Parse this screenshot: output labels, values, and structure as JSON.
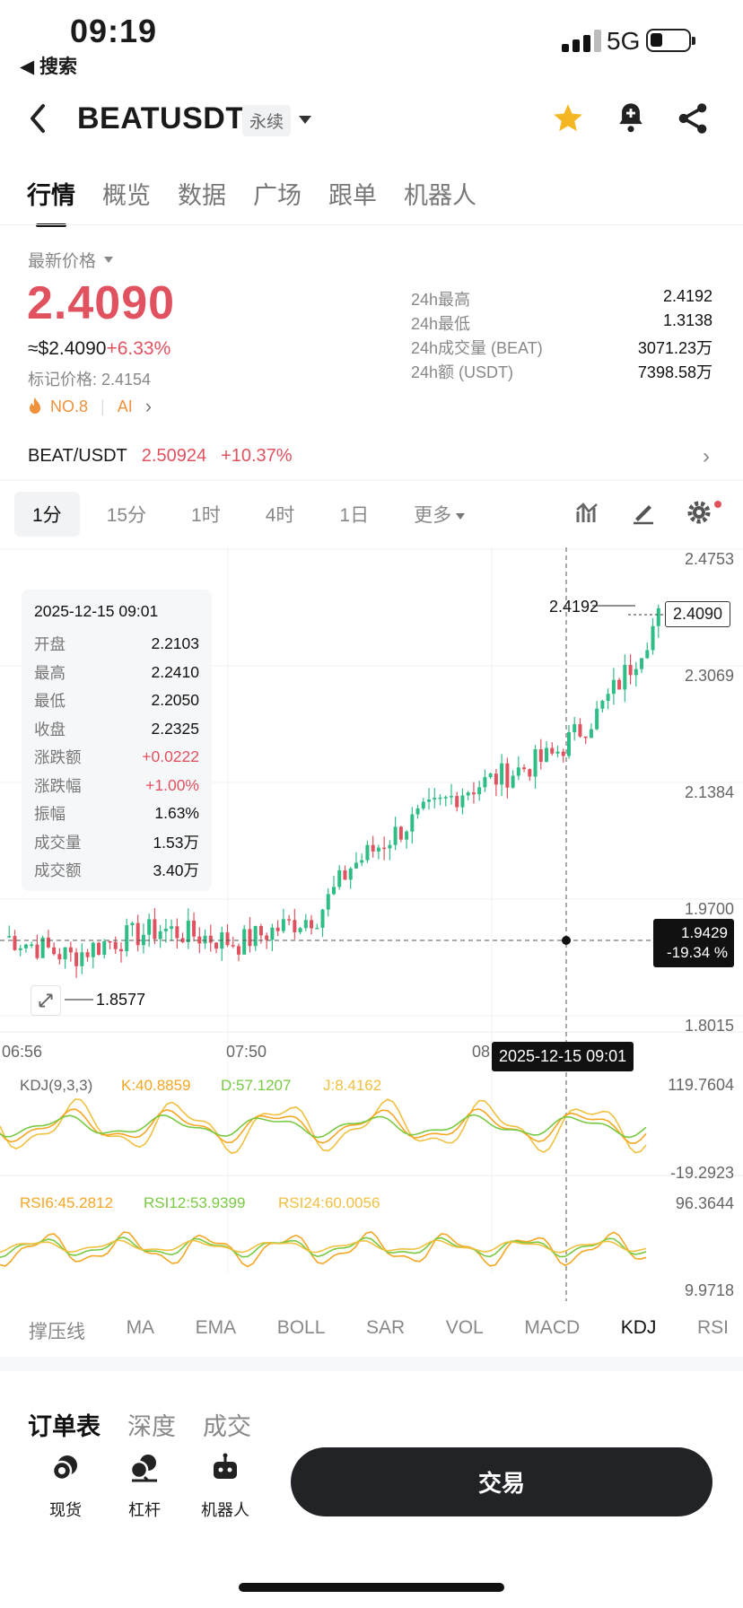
{
  "status_bar": {
    "time": "09:19",
    "back_app": "◀ 搜索",
    "network": "5G"
  },
  "header": {
    "pair": "BEATUSDT",
    "contract_type": "永续"
  },
  "tabs": [
    "行情",
    "概览",
    "数据",
    "广场",
    "跟单",
    "机器人"
  ],
  "price_panel": {
    "latest_label": "最新价格",
    "price": "2.4090",
    "usd_price": "≈$2.4090",
    "change_pct": "+6.33%",
    "mark_price": "标记价格: 2.4154",
    "rank": "NO.8",
    "ai": "AI"
  },
  "stats": [
    {
      "k": "24h最高",
      "v": "2.4192"
    },
    {
      "k": "24h最低",
      "v": "1.3138"
    },
    {
      "k": "24h成交量 (BEAT)",
      "v": "3071.23万"
    },
    {
      "k": "24h额 (USDT)",
      "v": "7398.58万"
    }
  ],
  "spot": {
    "pair": "BEAT/USDT",
    "price": "2.50924",
    "change": "+10.37%"
  },
  "intervals": [
    "1分",
    "15分",
    "1时",
    "4时",
    "1日"
  ],
  "more_label": "更多",
  "ohlc": {
    "date": "2025-12-15 09:01",
    "rows": [
      {
        "k": "开盘",
        "v": "2.2103",
        "red": false
      },
      {
        "k": "最高",
        "v": "2.2410",
        "red": false
      },
      {
        "k": "最低",
        "v": "2.2050",
        "red": false
      },
      {
        "k": "收盘",
        "v": "2.2325",
        "red": false
      },
      {
        "k": "涨跌额",
        "v": "+0.0222",
        "red": true
      },
      {
        "k": "涨跌幅",
        "v": "+1.00%",
        "red": true
      },
      {
        "k": "振幅",
        "v": "1.63%",
        "red": false
      },
      {
        "k": "成交量",
        "v": "1.53万",
        "red": false
      },
      {
        "k": "成交额",
        "v": "3.40万",
        "red": false
      }
    ]
  },
  "chart_data": {
    "type": "candlestick",
    "y_axis_labels": [
      "2.4753",
      "2.3069",
      "2.1384",
      "1.9700",
      "1.8015"
    ],
    "ylim": [
      1.8015,
      2.4753
    ],
    "x_axis_labels": [
      "06:56",
      "07:50",
      "08"
    ],
    "high_label": "2.4192",
    "low_label": "1.8577",
    "last_price": "2.4090",
    "crosshair": {
      "price": "1.9429",
      "change": "-19.34 %",
      "time": "2025-12-15 09:01"
    },
    "kdj": {
      "label": "KDJ(9,3,3)",
      "k": "K:40.8859",
      "d": "D:57.1207",
      "j": "J:8.4162",
      "top": "119.7604",
      "bottom": "-19.2923"
    },
    "rsi": {
      "r6": "RSI6:45.2812",
      "r12": "RSI12:53.9399",
      "r24": "RSI24:60.0056",
      "top": "96.3644",
      "bottom": "9.9718"
    }
  },
  "indicators": [
    "撑压线",
    "MA",
    "EMA",
    "BOLL",
    "SAR",
    "VOL",
    "MACD",
    "KDJ",
    "RSI"
  ],
  "book_tabs": [
    "订单表",
    "深度",
    "成交"
  ],
  "bottom_nav": [
    "现货",
    "杠杆",
    "机器人"
  ],
  "trade_button": "交易",
  "colors": {
    "up": "#2ebd85",
    "down": "#e0525f",
    "accent": "#f5b623"
  }
}
